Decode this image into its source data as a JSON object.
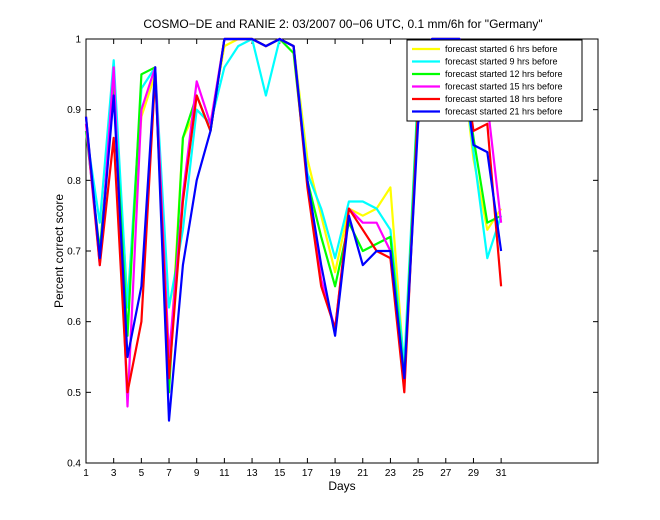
{
  "chart_data": {
    "type": "line",
    "title": "COSMO−DE and RANIE 2: 03/2007 00−06 UTC, 0.1 mm/6h for \"Germany\"",
    "xlabel": "Days",
    "ylabel": "Percent correct score",
    "xlim": [
      1,
      38
    ],
    "ylim": [
      0.4,
      1.0
    ],
    "xticks": [
      1,
      3,
      5,
      7,
      9,
      11,
      13,
      15,
      17,
      19,
      21,
      23,
      25,
      27,
      29,
      31
    ],
    "yticks": [
      0.4,
      0.5,
      0.6,
      0.7,
      0.8,
      0.9,
      1.0
    ],
    "ytick_labels": [
      "0.4",
      "0.5",
      "0.6",
      "0.7",
      "0.8",
      "0.9",
      "1"
    ],
    "legend_position": "top-right",
    "x": [
      1,
      2,
      3,
      4,
      5,
      6,
      7,
      8,
      9,
      10,
      11,
      12,
      13,
      14,
      15,
      16,
      17,
      18,
      19,
      20,
      21,
      22,
      23,
      24,
      25,
      26,
      27,
      28,
      29,
      30,
      31
    ],
    "series": [
      {
        "name": "forecast started 6 hrs before",
        "color": "#ffff00",
        "values": [
          0.88,
          0.69,
          0.93,
          0.63,
          0.89,
          0.95,
          0.52,
          0.86,
          0.9,
          0.88,
          0.99,
          1.0,
          1.0,
          0.99,
          1.0,
          0.99,
          0.83,
          0.75,
          0.67,
          0.76,
          0.75,
          0.76,
          0.79,
          0.53,
          0.92,
          1.0,
          1.0,
          1.0,
          0.83,
          0.73,
          0.76
        ]
      },
      {
        "name": "forecast started 9 hrs before",
        "color": "#00ffff",
        "values": [
          0.87,
          0.74,
          0.97,
          0.62,
          0.93,
          0.96,
          0.62,
          0.73,
          0.9,
          0.88,
          0.96,
          0.99,
          1.0,
          0.92,
          1.0,
          0.99,
          0.81,
          0.76,
          0.69,
          0.77,
          0.77,
          0.76,
          0.73,
          0.54,
          0.93,
          1.0,
          1.0,
          1.0,
          0.84,
          0.69,
          0.75
        ]
      },
      {
        "name": "forecast started 12 hrs before",
        "color": "#00ff00",
        "values": [
          0.87,
          0.7,
          0.93,
          0.58,
          0.95,
          0.96,
          0.5,
          0.86,
          0.92,
          0.87,
          1.0,
          1.0,
          1.0,
          0.99,
          1.0,
          0.98,
          0.8,
          0.72,
          0.65,
          0.74,
          0.7,
          0.71,
          0.72,
          0.52,
          0.92,
          1.0,
          1.0,
          1.0,
          0.86,
          0.74,
          0.75
        ]
      },
      {
        "name": "forecast started 15 hrs before",
        "color": "#ff00ff",
        "values": [
          0.88,
          0.68,
          0.96,
          0.48,
          0.9,
          0.96,
          0.55,
          0.78,
          0.94,
          0.88,
          1.0,
          1.0,
          1.0,
          0.99,
          1.0,
          0.99,
          0.8,
          0.66,
          0.59,
          0.76,
          0.74,
          0.74,
          0.7,
          0.51,
          0.9,
          1.0,
          1.0,
          1.0,
          0.89,
          0.91,
          0.74
        ]
      },
      {
        "name": "forecast started 18 hrs before",
        "color": "#ff0000",
        "values": [
          0.89,
          0.68,
          0.86,
          0.5,
          0.6,
          0.95,
          0.52,
          0.77,
          0.92,
          0.87,
          1.0,
          1.0,
          1.0,
          0.99,
          1.0,
          0.99,
          0.79,
          0.65,
          0.59,
          0.76,
          0.73,
          0.7,
          0.69,
          0.5,
          0.9,
          1.0,
          1.0,
          1.0,
          0.87,
          0.88,
          0.65
        ]
      },
      {
        "name": "forecast started 21 hrs before",
        "color": "#0000ff",
        "values": [
          0.89,
          0.69,
          0.92,
          0.55,
          0.65,
          0.96,
          0.46,
          0.68,
          0.8,
          0.87,
          1.0,
          1.0,
          1.0,
          0.99,
          1.0,
          0.99,
          0.8,
          0.68,
          0.58,
          0.75,
          0.68,
          0.7,
          0.7,
          0.52,
          0.88,
          1.0,
          1.0,
          1.0,
          0.85,
          0.84,
          0.7
        ]
      }
    ]
  }
}
